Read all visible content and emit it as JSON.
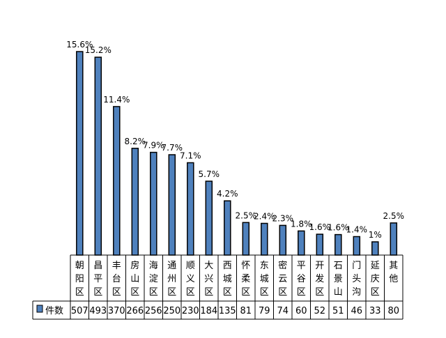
{
  "chart_data": {
    "type": "bar",
    "categories": [
      "朝阳区",
      "昌平区",
      "丰台区",
      "房山区",
      "海淀区",
      "通州区",
      "顺义区",
      "大兴区",
      "西城区",
      "怀柔区",
      "东城区",
      "密云区",
      "平谷区",
      "开发区",
      "石景山",
      "门头沟",
      "延庆区",
      "其他"
    ],
    "series": [
      {
        "name": "件数",
        "values": [
          507,
          493,
          370,
          266,
          256,
          250,
          230,
          184,
          135,
          81,
          79,
          74,
          60,
          52,
          51,
          46,
          33,
          80
        ]
      }
    ],
    "data_labels": [
      "15.6%",
      "15.2%",
      "11.4%",
      "8.2%",
      "7.9%",
      "7.7%",
      "7.1%",
      "5.7%",
      "4.2%",
      "2.5%",
      "2.4%",
      "2.3%",
      "1.8%",
      "1.6%",
      "1.6%",
      "1.4%",
      "1%",
      "2.5%"
    ],
    "ylim": [
      0,
      507
    ],
    "grid": false,
    "legend": "data-table-left",
    "colors": {
      "bar_fill": "#4f81bd",
      "bar_stroke": "#000000",
      "table_line": "#000000"
    }
  }
}
